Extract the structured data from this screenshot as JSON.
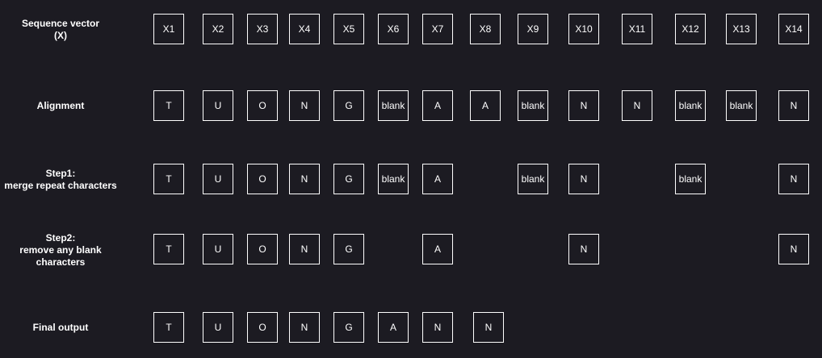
{
  "rows": [
    {
      "label": "Sequence vector\n(X)",
      "cells": [
        "X1",
        "X2",
        "X3",
        "X4",
        "X5",
        "X6",
        "X7",
        "X8",
        "X9",
        "X10",
        "X11",
        "X12",
        "X13",
        "X14"
      ]
    },
    {
      "label": "Alignment",
      "cells": [
        "T",
        "U",
        "O",
        "N",
        "G",
        "blank",
        "A",
        "A",
        "blank",
        "N",
        "N",
        "blank",
        "blank",
        "N"
      ]
    },
    {
      "label": "Step1:\nmerge repeat characters",
      "cells": [
        "T",
        "U",
        "O",
        "N",
        "G",
        "blank",
        "A",
        null,
        "blank",
        "N",
        null,
        "blank",
        null,
        "N"
      ]
    },
    {
      "label": "Step2:\nremove any blank\ncharacters",
      "cells": [
        "T",
        "U",
        "O",
        "N",
        "G",
        null,
        "A",
        null,
        null,
        "N",
        null,
        null,
        null,
        "N"
      ]
    },
    {
      "label": "Final output",
      "cells": [
        "T",
        "U",
        "O",
        "N",
        "G",
        "A",
        "N",
        "N"
      ]
    }
  ]
}
